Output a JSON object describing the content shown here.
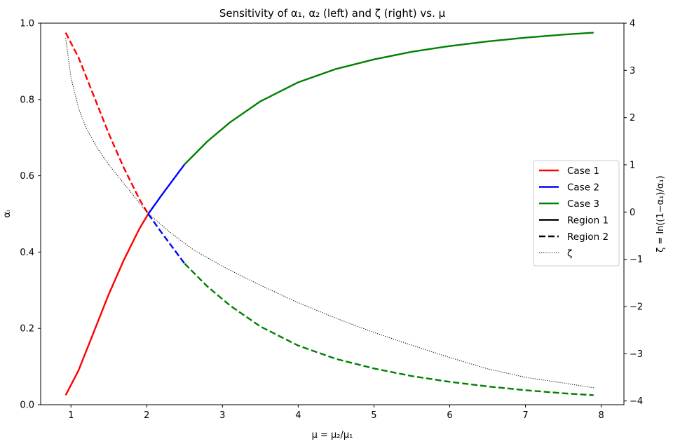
{
  "chart_data": {
    "type": "line",
    "title": "Sensitivity of α₁, α₂ (left) and ζ (right) vs. μ",
    "xlabel": "μ = μ₂/μ₁",
    "ylabel_left": "αᵢ",
    "ylabel_right": "ζ = ln((1−α₁)/α₁)",
    "xlim": [
      0.6,
      8.3
    ],
    "ylim_left": [
      0.0,
      1.0
    ],
    "ylim_right": [
      -4.08,
      4.0
    ],
    "xticks": [
      1,
      2,
      3,
      4,
      5,
      6,
      7,
      8
    ],
    "yticks_left": [
      0.0,
      0.2,
      0.4,
      0.6,
      0.8,
      1.0
    ],
    "yticks_right": [
      -4,
      -3,
      -2,
      -1,
      0,
      1,
      2,
      3,
      4
    ],
    "grid": false,
    "legend_position": "center-right",
    "legend": [
      {
        "label": "Case 1",
        "color": "#ff0000",
        "style": "solid"
      },
      {
        "label": "Case 2",
        "color": "#0000ff",
        "style": "solid"
      },
      {
        "label": "Case 3",
        "color": "#008000",
        "style": "solid"
      },
      {
        "label": "Region 1",
        "color": "#000000",
        "style": "solid"
      },
      {
        "label": "Region 2",
        "color": "#000000",
        "style": "dashed"
      },
      {
        "label": "ζ",
        "color": "#000000",
        "style": "dotted"
      }
    ],
    "series": [
      {
        "case": "Case 1",
        "region": "Region 1",
        "axis": "left",
        "color": "#ff0000",
        "style": "solid",
        "x": [
          0.93,
          1.1,
          1.3,
          1.5,
          1.7,
          1.9,
          2.02
        ],
        "y": [
          0.025,
          0.09,
          0.19,
          0.29,
          0.38,
          0.46,
          0.5
        ]
      },
      {
        "case": "Case 1",
        "region": "Region 2",
        "axis": "left",
        "color": "#ff0000",
        "style": "dashed",
        "x": [
          0.93,
          1.1,
          1.3,
          1.5,
          1.7,
          1.9,
          2.02
        ],
        "y": [
          0.975,
          0.91,
          0.81,
          0.71,
          0.62,
          0.54,
          0.5
        ]
      },
      {
        "case": "Case 2",
        "region": "Region 1",
        "axis": "left",
        "color": "#0000ff",
        "style": "solid",
        "x": [
          2.02,
          2.2,
          2.35,
          2.5
        ],
        "y": [
          0.5,
          0.55,
          0.59,
          0.63
        ]
      },
      {
        "case": "Case 2",
        "region": "Region 2",
        "axis": "left",
        "color": "#0000ff",
        "style": "dashed",
        "x": [
          2.02,
          2.2,
          2.35,
          2.5
        ],
        "y": [
          0.5,
          0.45,
          0.41,
          0.37
        ]
      },
      {
        "case": "Case 3",
        "region": "Region 1",
        "axis": "left",
        "color": "#008000",
        "style": "solid",
        "x": [
          2.5,
          2.8,
          3.1,
          3.5,
          4.0,
          4.5,
          5.0,
          5.5,
          6.0,
          6.5,
          7.0,
          7.5,
          7.9
        ],
        "y": [
          0.63,
          0.69,
          0.74,
          0.795,
          0.845,
          0.88,
          0.905,
          0.925,
          0.94,
          0.952,
          0.962,
          0.97,
          0.975
        ]
      },
      {
        "case": "Case 3",
        "region": "Region 2",
        "axis": "left",
        "color": "#008000",
        "style": "dashed",
        "x": [
          2.5,
          2.8,
          3.1,
          3.5,
          4.0,
          4.5,
          5.0,
          5.5,
          6.0,
          6.5,
          7.0,
          7.5,
          7.9
        ],
        "y": [
          0.37,
          0.31,
          0.26,
          0.205,
          0.155,
          0.12,
          0.095,
          0.075,
          0.06,
          0.048,
          0.038,
          0.03,
          0.025
        ]
      },
      {
        "case": "ζ",
        "region": "",
        "axis": "right",
        "color": "#000000",
        "style": "dotted",
        "x": [
          0.93,
          1.0,
          1.1,
          1.2,
          1.35,
          1.5,
          1.7,
          1.9,
          2.0,
          2.3,
          2.6,
          3.0,
          3.5,
          4.0,
          4.5,
          5.0,
          5.5,
          6.0,
          6.5,
          7.0,
          7.5,
          7.9
        ],
        "y": [
          3.68,
          2.85,
          2.2,
          1.78,
          1.35,
          1.0,
          0.6,
          0.2,
          0.0,
          -0.42,
          -0.78,
          -1.15,
          -1.55,
          -1.92,
          -2.25,
          -2.55,
          -2.82,
          -3.08,
          -3.32,
          -3.5,
          -3.62,
          -3.72
        ]
      }
    ]
  }
}
